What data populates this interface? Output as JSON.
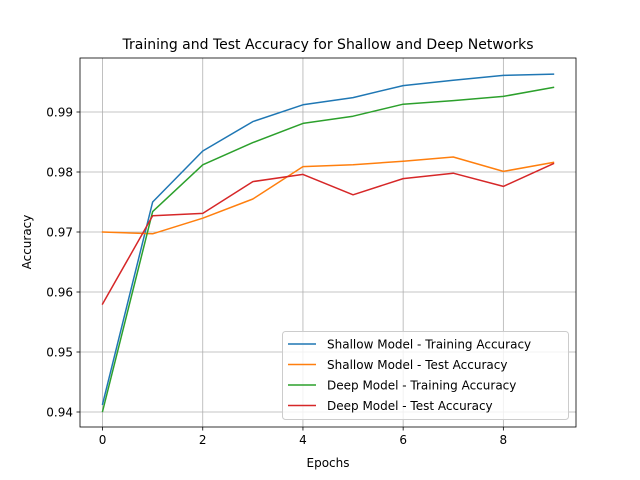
{
  "chart_data": {
    "type": "line",
    "title": "Training and Test Accuracy for Shallow and Deep Networks",
    "xlabel": "Epochs",
    "ylabel": "Accuracy",
    "x": [
      0,
      1,
      2,
      3,
      4,
      5,
      6,
      7,
      8,
      9
    ],
    "xlim": [
      -0.45,
      9.45
    ],
    "ylim": [
      0.9375,
      0.999
    ],
    "xticks": [
      0,
      2,
      4,
      6,
      8
    ],
    "yticks": [
      0.94,
      0.95,
      0.96,
      0.97,
      0.98,
      0.99
    ],
    "xtick_labels": [
      "0",
      "2",
      "4",
      "6",
      "8"
    ],
    "ytick_labels": [
      "0.94",
      "0.95",
      "0.96",
      "0.97",
      "0.98",
      "0.99"
    ],
    "grid": true,
    "legend_position": "lower-right",
    "series": [
      {
        "name": "Shallow Model - Training Accuracy",
        "color": "#1f77b4",
        "values": [
          0.9413,
          0.975,
          0.9835,
          0.9884,
          0.9912,
          0.9924,
          0.9944,
          0.9953,
          0.9961,
          0.9963
        ]
      },
      {
        "name": "Shallow Model - Test Accuracy",
        "color": "#ff7f0e",
        "values": [
          0.97,
          0.9697,
          0.9723,
          0.9755,
          0.9809,
          0.9812,
          0.9818,
          0.9825,
          0.9801,
          0.9816
        ]
      },
      {
        "name": "Deep Model - Training Accuracy",
        "color": "#2ca02c",
        "values": [
          0.9401,
          0.9734,
          0.9812,
          0.9849,
          0.9881,
          0.9893,
          0.9913,
          0.9919,
          0.9926,
          0.9941
        ]
      },
      {
        "name": "Deep Model - Test Accuracy",
        "color": "#d62728",
        "values": [
          0.958,
          0.9727,
          0.9731,
          0.9784,
          0.9796,
          0.9762,
          0.9789,
          0.9798,
          0.9776,
          0.9814
        ]
      }
    ]
  }
}
